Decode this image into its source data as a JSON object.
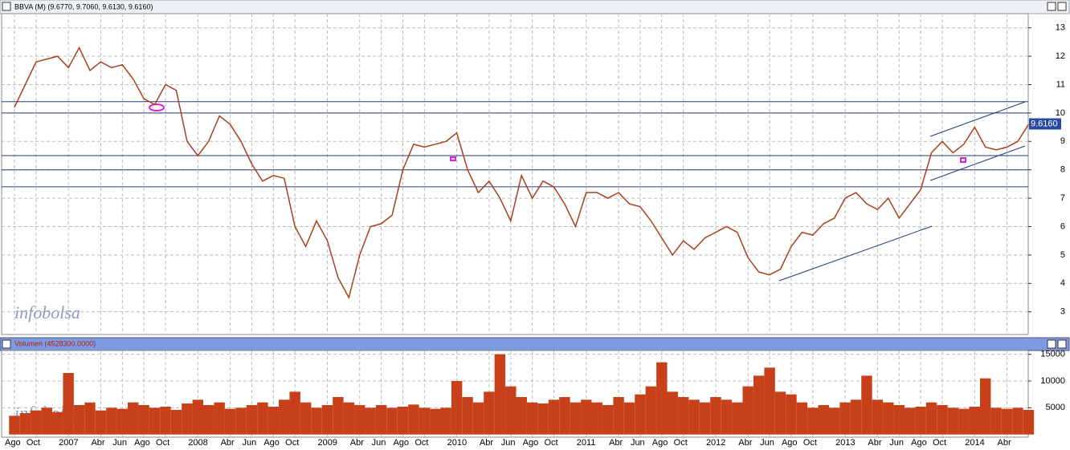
{
  "chart_data": [
    {
      "type": "line",
      "title": "BBVA (M) (9.6770, 9.7060, 9.6130, 9.6160)",
      "watermark": "infobolsa",
      "color": "#a8401e",
      "values": [
        10.2,
        11.0,
        11.8,
        11.9,
        12.0,
        11.6,
        12.3,
        11.5,
        11.8,
        11.6,
        11.7,
        11.2,
        10.5,
        10.3,
        11.0,
        10.8,
        9.0,
        8.5,
        9.0,
        9.9,
        9.6,
        9.0,
        8.2,
        7.6,
        7.8,
        7.7,
        6.0,
        5.3,
        6.2,
        5.5,
        4.2,
        3.5,
        5.0,
        6.0,
        6.1,
        6.4,
        8.0,
        8.9,
        8.8,
        8.9,
        9.0,
        9.3,
        8.0,
        7.2,
        7.6,
        7.0,
        6.2,
        7.8,
        7.0,
        7.6,
        7.4,
        6.8,
        6.0,
        7.2,
        7.2,
        7.0,
        7.2,
        6.8,
        6.7,
        6.2,
        5.6,
        5.0,
        5.5,
        5.2,
        5.6,
        5.8,
        6.0,
        5.8,
        4.9,
        4.4,
        4.3,
        4.5,
        5.3,
        5.8,
        5.7,
        6.1,
        6.3,
        7.0,
        7.2,
        6.8,
        6.6,
        7.0,
        6.3,
        6.8,
        7.3,
        8.6,
        9.0,
        8.6,
        8.9,
        9.5,
        8.8,
        8.7,
        8.8,
        9.0,
        9.6
      ],
      "last_value": {
        "value": 9.616,
        "label": "9.6160"
      },
      "hlines": [
        10.4,
        10.0,
        8.5,
        8.0,
        7.4
      ],
      "ylim": [
        2.2,
        13.5
      ],
      "yticks": [
        3,
        4,
        5,
        6,
        7,
        8,
        9,
        10,
        11,
        12,
        13
      ],
      "grid": true
    },
    {
      "type": "bar",
      "title": "Volumen (4528300.0000)",
      "watermark": "infobolsa",
      "color": "#c8401a",
      "categories": [
        "Ago",
        null,
        "Oct",
        null,
        null,
        "2007",
        null,
        null,
        "Abr",
        null,
        "Jun",
        null,
        "Ago",
        null,
        "Oct",
        null,
        null,
        "2008",
        null,
        null,
        "Abr",
        null,
        "Jun",
        null,
        "Ago",
        null,
        "Oct",
        null,
        null,
        "2009",
        null,
        null,
        "Abr",
        null,
        "Jun",
        null,
        "Ago",
        null,
        "Oct",
        null,
        null,
        "2010",
        null,
        null,
        "Abr",
        null,
        "Jun",
        null,
        "Ago",
        null,
        "Oct",
        null,
        null,
        "2011",
        null,
        null,
        "Abr",
        null,
        "Jun",
        null,
        "Ago",
        null,
        "Oct",
        null,
        null,
        "2012",
        null,
        null,
        "Abr",
        null,
        "Jun",
        null,
        "Ago",
        null,
        "Oct",
        null,
        null,
        "2013",
        null,
        null,
        "Abr",
        null,
        "Jun",
        null,
        "Ago",
        null,
        "Oct",
        null,
        null,
        "2014",
        null,
        null,
        "Abr",
        null,
        null
      ],
      "values": [
        3500,
        4000,
        4500,
        5000,
        4200,
        11500,
        5500,
        6000,
        4500,
        5000,
        4800,
        6000,
        5500,
        5000,
        5200,
        4600,
        5800,
        6500,
        5500,
        6000,
        4800,
        5000,
        5500,
        6000,
        5200,
        6500,
        8000,
        6000,
        5000,
        5500,
        7000,
        6000,
        5500,
        5000,
        5500,
        5000,
        5200,
        5600,
        5000,
        4800,
        5000,
        10000,
        7000,
        6000,
        8000,
        15000,
        9000,
        7000,
        6000,
        5800,
        6500,
        7000,
        6000,
        6500,
        6000,
        5500,
        7000,
        6000,
        7500,
        9000,
        13500,
        8000,
        7000,
        6500,
        6000,
        7000,
        6500,
        6000,
        9000,
        11000,
        12500,
        8000,
        7500,
        6000,
        5000,
        5500,
        5000,
        6000,
        6500,
        11000,
        6500,
        6000,
        5500,
        5000,
        5200,
        6000,
        5500,
        5000,
        4800,
        5200,
        10500,
        5000,
        4800,
        5000,
        4600
      ],
      "last_value": {
        "value": 4528300,
        "label": "4528300"
      },
      "ylim": [
        -500,
        15700
      ],
      "yticks": [
        5000,
        10000,
        15000
      ],
      "grid": true
    }
  ]
}
